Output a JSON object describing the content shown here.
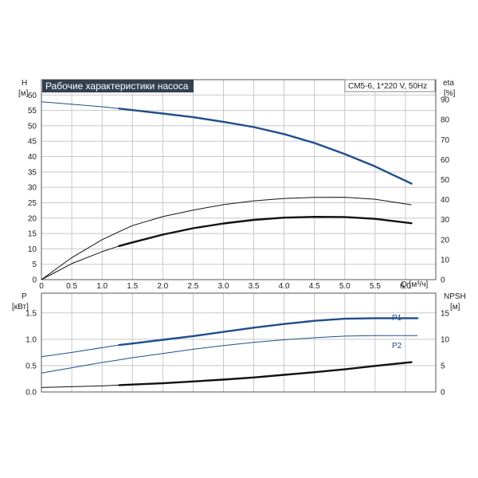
{
  "colors": {
    "blue": "#1f4e8c",
    "black": "#111111",
    "grid": "#c8c8c8"
  },
  "chart_data": [
    {
      "type": "line",
      "title": "Рабочие характеристики насоса",
      "subtitle": "CM5-6, 1*220 V, 50Hz",
      "xlabel": "Q [м³/ч]",
      "ylabel": "H",
      "ylabel_unit": "[м]",
      "y2label": "eta",
      "y2label_unit": "[%]",
      "xlim": [
        0,
        6.5
      ],
      "ylim": [
        0,
        65
      ],
      "y2lim": [
        0,
        100
      ],
      "x_ticks": [
        "0",
        "0.5",
        "1.0",
        "1.5",
        "2.0",
        "2.5",
        "3.0",
        "3.5",
        "4.0",
        "4.5",
        "5.0",
        "5.5",
        "6.0"
      ],
      "y_ticks": [
        "0",
        "5",
        "10",
        "15",
        "20",
        "25",
        "30",
        "35",
        "40",
        "45",
        "50",
        "55",
        "60"
      ],
      "y2_ticks": [
        "0",
        "10",
        "20",
        "30",
        "40",
        "50",
        "60",
        "70",
        "80",
        "90"
      ],
      "grid": true,
      "series": [
        {
          "axis": "left",
          "color": "#1f4e8c",
          "thin_to": 1.28,
          "x": [
            0,
            0.5,
            1.0,
            1.28,
            1.5,
            2.0,
            2.5,
            3.0,
            3.5,
            4.0,
            4.5,
            5.0,
            5.5,
            6.1
          ],
          "y": [
            57.8,
            57.0,
            56.2,
            55.6,
            55.1,
            54.0,
            52.8,
            51.3,
            49.6,
            47.3,
            44.4,
            40.8,
            36.8,
            31.2
          ]
        },
        {
          "axis": "right",
          "color": "#111111",
          "thin_to": 6.2,
          "x": [
            0,
            0.5,
            1.0,
            1.28,
            1.5,
            2.0,
            2.5,
            3.0,
            3.5,
            4.0,
            4.5,
            5.0,
            5.5,
            6.1
          ],
          "y": [
            0,
            11,
            20,
            24,
            27,
            31.5,
            34.8,
            37.5,
            39.4,
            40.6,
            41.1,
            41.2,
            40.2,
            37.4
          ]
        },
        {
          "axis": "right",
          "color": "#111111",
          "thin_to": 1.28,
          "x": [
            0,
            0.5,
            1.0,
            1.28,
            1.5,
            2.0,
            2.5,
            3.0,
            3.5,
            4.0,
            4.5,
            5.0,
            5.5,
            6.1
          ],
          "y": [
            0,
            8,
            14,
            16.8,
            18.6,
            22.5,
            25.7,
            28.1,
            29.9,
            31.0,
            31.4,
            31.3,
            30.4,
            28.2
          ]
        }
      ]
    },
    {
      "type": "line",
      "ylabel": "P",
      "ylabel_unit": "[кВт]",
      "y2label": "NPSH",
      "y2label_unit": "[м]",
      "xlim": [
        0,
        6.5
      ],
      "ylim": [
        0,
        1.875
      ],
      "y2lim": [
        0,
        18.75
      ],
      "y_ticks": [
        "0.0",
        "0.5",
        "1.0",
        "1.5"
      ],
      "y2_ticks": [
        "0",
        "5",
        "10",
        "15"
      ],
      "grid": true,
      "series": [
        {
          "name": "P1",
          "axis": "left",
          "color": "#1f4e8c",
          "thin_to": 1.28,
          "x": [
            0,
            0.5,
            1.0,
            1.28,
            1.5,
            2.0,
            2.5,
            3.0,
            3.5,
            4.0,
            4.5,
            5.0,
            5.5,
            6.2
          ],
          "y": [
            0.67,
            0.75,
            0.84,
            0.89,
            0.92,
            0.99,
            1.06,
            1.14,
            1.22,
            1.29,
            1.35,
            1.39,
            1.4,
            1.4
          ]
        },
        {
          "name": "P2",
          "axis": "left",
          "color": "#1f4e8c",
          "thin_to": 6.2,
          "x": [
            0,
            0.5,
            1.0,
            1.28,
            1.5,
            2.0,
            2.5,
            3.0,
            3.5,
            4.0,
            4.5,
            5.0,
            5.5,
            6.2
          ],
          "y": [
            0.36,
            0.46,
            0.56,
            0.61,
            0.65,
            0.73,
            0.81,
            0.88,
            0.94,
            0.99,
            1.03,
            1.06,
            1.07,
            1.07
          ]
        },
        {
          "axis": "right",
          "color": "#111111",
          "thin_to": 1.28,
          "x": [
            0,
            0.5,
            1.0,
            1.28,
            1.5,
            2.0,
            2.5,
            3.0,
            3.5,
            4.0,
            4.5,
            5.0,
            5.5,
            6.1
          ],
          "y": [
            0.85,
            1.0,
            1.15,
            1.3,
            1.4,
            1.65,
            2.0,
            2.35,
            2.75,
            3.25,
            3.75,
            4.3,
            4.95,
            5.65
          ]
        }
      ]
    }
  ]
}
